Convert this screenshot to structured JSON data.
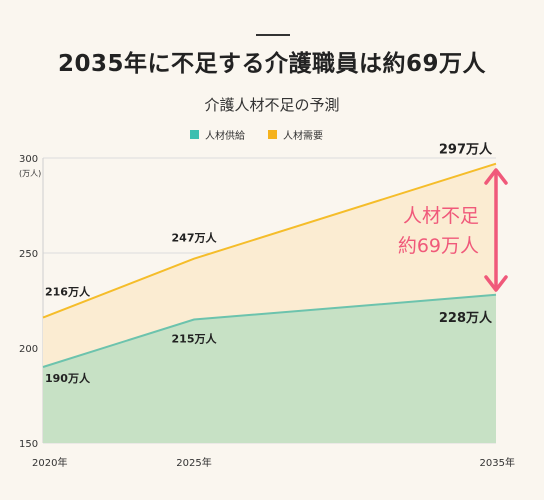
{
  "headline": "2035年に不足する介護職員は約69万人",
  "chart_data": {
    "type": "area",
    "title": "介護人材不足の予測",
    "ylabel": "(万人)",
    "ylim": [
      150,
      300
    ],
    "yticks": [
      150,
      200,
      250,
      300
    ],
    "x": [
      "2020年",
      "2025年",
      "2035年"
    ],
    "x_numeric": [
      2020,
      2025,
      2035
    ],
    "legend_position": "top",
    "series": [
      {
        "name": "人材供給",
        "values": [
          190,
          215,
          228
        ],
        "labels": [
          "190万人",
          "215万人",
          "228万人"
        ],
        "color": "#3dbfb0",
        "fill": "#c7e1c5",
        "line": "#6cc3ad"
      },
      {
        "name": "人材需要",
        "values": [
          216,
          247,
          297
        ],
        "labels": [
          "216万人",
          "247万人",
          "297万人"
        ],
        "color": "#f5b21c",
        "fill": "#fbecd2",
        "line": "#f5bd2a"
      }
    ],
    "annotation": {
      "line1": "人材不足",
      "line2": "約69万人",
      "color": "#f0597a"
    }
  }
}
